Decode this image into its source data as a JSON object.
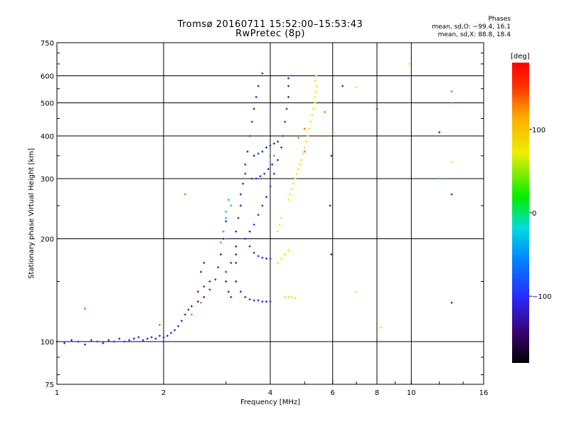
{
  "header": {
    "title_line1": "Tromsø 20160711 15:52:00–15:53:43",
    "title_line2": "RwPretec (8p)"
  },
  "phase_info": {
    "heading": "Phases",
    "line_o": "mean, sd,O: −99.4, 16.1",
    "line_x": "mean, sd,X:  88.8, 18.4"
  },
  "chart_data": {
    "type": "scatter",
    "title": "Tromsø 20160711 15:52:00–15:53:43",
    "subtitle": "RwPretec (8p)",
    "xlabel": "Frequency [MHz]",
    "ylabel": "Stationary phase Virtual Height [km]",
    "x_scale": "log",
    "y_scale": "log",
    "xlim": [
      1,
      16
    ],
    "ylim": [
      75,
      750
    ],
    "x_ticks": [
      1,
      2,
      4,
      6,
      8,
      10,
      16
    ],
    "x_tick_labels": [
      "1",
      "2",
      "4",
      "6",
      "8",
      "10",
      "16"
    ],
    "y_ticks": [
      75,
      100,
      200,
      300,
      400,
      500,
      600,
      750
    ],
    "y_tick_labels": [
      "75",
      "100",
      "200",
      "300",
      "400",
      "500",
      "600",
      "750"
    ],
    "grid": true,
    "colorbar": {
      "label": "[deg]",
      "range": [
        -180,
        180
      ],
      "ticks": [
        100,
        0,
        -100
      ],
      "tick_labels": [
        "100",
        "0",
        "−100"
      ]
    },
    "series": [
      {
        "mode": "O",
        "phase_deg": -99,
        "color": "#2222cc",
        "points": [
          [
            1.0,
            100
          ],
          [
            1.05,
            99
          ],
          [
            1.1,
            101
          ],
          [
            1.15,
            100
          ],
          [
            1.2,
            98
          ],
          [
            1.25,
            101
          ],
          [
            1.3,
            100
          ],
          [
            1.35,
            99
          ],
          [
            1.4,
            101
          ],
          [
            1.45,
            100
          ],
          [
            1.5,
            102
          ],
          [
            1.55,
            100
          ],
          [
            1.6,
            101
          ],
          [
            1.65,
            102
          ],
          [
            1.7,
            103
          ],
          [
            1.75,
            101
          ],
          [
            1.8,
            102
          ],
          [
            1.85,
            103
          ],
          [
            1.9,
            102
          ],
          [
            1.95,
            104
          ],
          [
            2.0,
            103
          ],
          [
            2.05,
            104
          ],
          [
            2.1,
            106
          ],
          [
            2.15,
            108
          ],
          [
            2.2,
            111
          ],
          [
            2.25,
            115
          ],
          [
            2.3,
            120
          ],
          [
            2.35,
            124
          ],
          [
            2.4,
            127
          ],
          [
            2.5,
            131
          ],
          [
            2.6,
            135
          ],
          [
            2.7,
            142
          ],
          [
            2.8,
            152
          ],
          [
            2.85,
            165
          ],
          [
            2.9,
            180
          ],
          [
            2.95,
            200
          ],
          [
            3.0,
            225
          ],
          [
            3.2,
            150
          ],
          [
            3.2,
            170
          ],
          [
            3.2,
            190
          ],
          [
            3.2,
            210
          ],
          [
            3.25,
            230
          ],
          [
            3.3,
            250
          ],
          [
            3.3,
            270
          ],
          [
            3.35,
            290
          ],
          [
            3.4,
            310
          ],
          [
            3.4,
            330
          ],
          [
            3.45,
            360
          ],
          [
            3.5,
            400
          ],
          [
            3.55,
            440
          ],
          [
            3.6,
            480
          ],
          [
            3.65,
            520
          ],
          [
            3.7,
            560
          ],
          [
            3.8,
            610
          ],
          [
            3.3,
            140
          ],
          [
            3.4,
            135
          ],
          [
            3.5,
            133
          ],
          [
            3.6,
            132
          ],
          [
            3.7,
            132
          ],
          [
            3.8,
            131
          ],
          [
            3.9,
            131
          ],
          [
            4.0,
            131
          ],
          [
            3.4,
            200
          ],
          [
            3.5,
            210
          ],
          [
            3.6,
            220
          ],
          [
            3.7,
            235
          ],
          [
            3.8,
            250
          ],
          [
            3.9,
            265
          ],
          [
            4.0,
            285
          ],
          [
            4.1,
            310
          ],
          [
            4.2,
            340
          ],
          [
            4.3,
            370
          ],
          [
            4.35,
            400
          ],
          [
            4.4,
            440
          ],
          [
            4.45,
            480
          ],
          [
            4.5,
            520
          ],
          [
            4.5,
            560
          ],
          [
            4.5,
            590
          ],
          [
            3.5,
            190
          ],
          [
            3.6,
            182
          ],
          [
            3.7,
            178
          ],
          [
            3.8,
            176
          ],
          [
            3.9,
            175
          ],
          [
            4.0,
            175
          ],
          [
            3.0,
            160
          ],
          [
            3.1,
            170
          ],
          [
            3.2,
            180
          ],
          [
            3.0,
            150
          ],
          [
            3.05,
            140
          ],
          [
            3.1,
            135
          ],
          [
            3.6,
            350
          ],
          [
            3.7,
            355
          ],
          [
            3.8,
            360
          ],
          [
            3.9,
            370
          ],
          [
            4.0,
            375
          ],
          [
            4.1,
            380
          ],
          [
            4.2,
            385
          ],
          [
            3.55,
            300
          ],
          [
            3.65,
            300
          ],
          [
            3.75,
            305
          ],
          [
            3.85,
            310
          ],
          [
            3.95,
            320
          ],
          [
            4.05,
            330
          ],
          [
            2.5,
            140
          ],
          [
            2.6,
            145
          ],
          [
            2.7,
            150
          ],
          [
            2.55,
            160
          ],
          [
            2.6,
            170
          ],
          [
            5.95,
            350
          ],
          [
            5.9,
            250
          ],
          [
            5.95,
            180
          ],
          [
            6.4,
            560
          ],
          [
            8.0,
            480
          ],
          [
            12.0,
            410
          ],
          [
            13.0,
            130
          ],
          [
            13.0,
            270
          ]
        ]
      },
      {
        "mode": "X",
        "phase_deg": 89,
        "color": "#e8e800",
        "points": [
          [
            4.2,
            170
          ],
          [
            4.3,
            175
          ],
          [
            4.4,
            180
          ],
          [
            4.5,
            185
          ],
          [
            4.4,
            135
          ],
          [
            4.5,
            135
          ],
          [
            4.6,
            135
          ],
          [
            4.7,
            134
          ],
          [
            4.5,
            260
          ],
          [
            4.55,
            270
          ],
          [
            4.6,
            280
          ],
          [
            4.65,
            290
          ],
          [
            4.7,
            300
          ],
          [
            4.75,
            310
          ],
          [
            4.8,
            320
          ],
          [
            4.85,
            330
          ],
          [
            4.9,
            340
          ],
          [
            4.95,
            355
          ],
          [
            5.0,
            370
          ],
          [
            5.05,
            385
          ],
          [
            5.1,
            400
          ],
          [
            5.15,
            420
          ],
          [
            5.2,
            440
          ],
          [
            5.25,
            460
          ],
          [
            5.3,
            480
          ],
          [
            5.35,
            500
          ],
          [
            5.35,
            520
          ],
          [
            5.4,
            540
          ],
          [
            5.4,
            560
          ],
          [
            5.35,
            580
          ],
          [
            5.4,
            600
          ],
          [
            4.3,
            230
          ],
          [
            4.25,
            220
          ],
          [
            4.2,
            210
          ],
          [
            7.0,
            555
          ],
          [
            7.0,
            140
          ],
          [
            8.2,
            110
          ],
          [
            9.9,
            650
          ],
          [
            13.0,
            335
          ]
        ]
      },
      {
        "mode": "O-high",
        "phase_deg": -60,
        "color": "#22aadd",
        "points": [
          [
            3.0,
            200
          ],
          [
            2.9,
            195
          ],
          [
            2.95,
            210
          ],
          [
            3.0,
            230
          ],
          [
            3.05,
            260
          ],
          [
            3.0,
            240
          ],
          [
            3.1,
            250
          ],
          [
            4.0,
            360
          ],
          [
            4.1,
            350
          ],
          [
            4.0,
            340
          ],
          [
            12.0,
            300
          ],
          [
            13.0,
            540
          ],
          [
            13.0,
            500
          ]
        ]
      },
      {
        "mode": "mixed",
        "phase_deg": 150,
        "color": "#ff6600",
        "points": [
          [
            1.2,
            125
          ],
          [
            1.95,
            112
          ],
          [
            2.3,
            270
          ],
          [
            2.4,
            120
          ],
          [
            2.55,
            130
          ],
          [
            4.8,
            395
          ],
          [
            5.0,
            420
          ],
          [
            5.0,
            360
          ],
          [
            6.0,
            410
          ],
          [
            5.7,
            470
          ]
        ]
      }
    ]
  }
}
